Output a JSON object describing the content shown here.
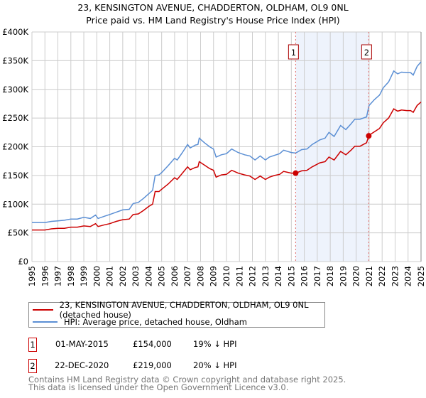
{
  "chart_data": {
    "type": "line",
    "title": "23, KENSINGTON AVENUE, CHADDERTON, OLDHAM, OL9 0NL",
    "subtitle": "Price paid vs. HM Land Registry's House Price Index (HPI)",
    "xlim": [
      1995,
      2025
    ],
    "ylim": [
      0,
      400000
    ],
    "x_ticks": [
      "1995",
      "1996",
      "1997",
      "1998",
      "1999",
      "2000",
      "2001",
      "2002",
      "2003",
      "2004",
      "2005",
      "2006",
      "2007",
      "2008",
      "2009",
      "2010",
      "2011",
      "2012",
      "2013",
      "2014",
      "2015",
      "2016",
      "2017",
      "2018",
      "2019",
      "2020",
      "2021",
      "2022",
      "2023",
      "2024",
      "2025"
    ],
    "y_ticks": [
      {
        "value": 0,
        "label": "£0"
      },
      {
        "value": 50000,
        "label": "£50K"
      },
      {
        "value": 100000,
        "label": "£100K"
      },
      {
        "value": 150000,
        "label": "£150K"
      },
      {
        "value": 200000,
        "label": "£200K"
      },
      {
        "value": 250000,
        "label": "£250K"
      },
      {
        "value": 300000,
        "label": "£300K"
      },
      {
        "value": 350000,
        "label": "£350K"
      },
      {
        "value": 400000,
        "label": "£400K"
      }
    ],
    "grid": true,
    "shaded_range": [
      2015.33,
      2020.97
    ],
    "series": [
      {
        "name": "23, KENSINGTON AVENUE, CHADDERTON, OLDHAM, OL9 0NL (detached house)",
        "color": "#cc0000",
        "points": [
          [
            1995,
            55
          ],
          [
            1995.5,
            55
          ],
          [
            1996,
            55
          ],
          [
            1996.5,
            57
          ],
          [
            1997,
            58
          ],
          [
            1997.5,
            58
          ],
          [
            1998,
            60
          ],
          [
            1998.5,
            60
          ],
          [
            1999,
            62
          ],
          [
            1999.5,
            61
          ],
          [
            1999.9,
            66
          ],
          [
            2000.1,
            61
          ],
          [
            2000.6,
            64
          ],
          [
            2001,
            66
          ],
          [
            2001.5,
            70
          ],
          [
            2002,
            73
          ],
          [
            2002.5,
            74
          ],
          [
            2002.8,
            82
          ],
          [
            2003.2,
            83
          ],
          [
            2003.6,
            89
          ],
          [
            2004,
            96
          ],
          [
            2004.3,
            100
          ],
          [
            2004.5,
            122
          ],
          [
            2004.8,
            122
          ],
          [
            2005,
            126
          ],
          [
            2005.5,
            135
          ],
          [
            2006,
            146
          ],
          [
            2006.2,
            143
          ],
          [
            2006.6,
            154
          ],
          [
            2007,
            165
          ],
          [
            2007.2,
            160
          ],
          [
            2007.6,
            164
          ],
          [
            2007.8,
            165
          ],
          [
            2007.9,
            174
          ],
          [
            2008.3,
            168
          ],
          [
            2008.7,
            162
          ],
          [
            2009,
            159
          ],
          [
            2009.2,
            147
          ],
          [
            2009.6,
            151
          ],
          [
            2010,
            152
          ],
          [
            2010.4,
            159
          ],
          [
            2010.9,
            154
          ],
          [
            2011.4,
            151
          ],
          [
            2011.8,
            149
          ],
          [
            2012.2,
            143
          ],
          [
            2012.6,
            149
          ],
          [
            2013,
            143
          ],
          [
            2013.3,
            147
          ],
          [
            2013.7,
            150
          ],
          [
            2014.1,
            152
          ],
          [
            2014.4,
            157
          ],
          [
            2015,
            154
          ],
          [
            2015.33,
            154
          ],
          [
            2015.8,
            158
          ],
          [
            2016.2,
            159
          ],
          [
            2016.6,
            165
          ],
          [
            2017.2,
            172
          ],
          [
            2017.6,
            174
          ],
          [
            2017.9,
            182
          ],
          [
            2018.3,
            177
          ],
          [
            2018.8,
            192
          ],
          [
            2019.2,
            186
          ],
          [
            2019.6,
            194
          ],
          [
            2019.9,
            201
          ],
          [
            2020.3,
            201
          ],
          [
            2020.8,
            207
          ],
          [
            2020.97,
            219
          ],
          [
            2021.0,
            220
          ],
          [
            2021.4,
            226
          ],
          [
            2021.8,
            232
          ],
          [
            2022.1,
            242
          ],
          [
            2022.5,
            250
          ],
          [
            2022.9,
            266
          ],
          [
            2023.2,
            262
          ],
          [
            2023.5,
            264
          ],
          [
            2023.9,
            263
          ],
          [
            2024.2,
            263
          ],
          [
            2024.4,
            260
          ],
          [
            2024.7,
            272
          ],
          [
            2025.0,
            278
          ]
        ]
      },
      {
        "name": "HPI: Average price, detached house, Oldham",
        "color": "#5b8fd4",
        "points": [
          [
            1995,
            68
          ],
          [
            1995.5,
            68
          ],
          [
            1996,
            68
          ],
          [
            1996.5,
            70
          ],
          [
            1997,
            71
          ],
          [
            1997.5,
            72
          ],
          [
            1998,
            74
          ],
          [
            1998.5,
            74
          ],
          [
            1999,
            77
          ],
          [
            1999.5,
            75
          ],
          [
            1999.9,
            81
          ],
          [
            2000.1,
            75
          ],
          [
            2000.6,
            79
          ],
          [
            2001,
            82
          ],
          [
            2001.5,
            86
          ],
          [
            2002,
            90
          ],
          [
            2002.5,
            91
          ],
          [
            2002.8,
            101
          ],
          [
            2003.2,
            103
          ],
          [
            2003.6,
            110
          ],
          [
            2004,
            118
          ],
          [
            2004.3,
            124
          ],
          [
            2004.5,
            150
          ],
          [
            2004.8,
            151
          ],
          [
            2005,
            155
          ],
          [
            2005.5,
            167
          ],
          [
            2006,
            180
          ],
          [
            2006.2,
            177
          ],
          [
            2006.6,
            190
          ],
          [
            2007,
            204
          ],
          [
            2007.2,
            198
          ],
          [
            2007.6,
            203
          ],
          [
            2007.8,
            204
          ],
          [
            2007.9,
            215
          ],
          [
            2008.3,
            207
          ],
          [
            2008.7,
            200
          ],
          [
            2009,
            196
          ],
          [
            2009.2,
            182
          ],
          [
            2009.6,
            186
          ],
          [
            2010,
            188
          ],
          [
            2010.4,
            196
          ],
          [
            2010.9,
            190
          ],
          [
            2011.4,
            186
          ],
          [
            2011.8,
            184
          ],
          [
            2012.2,
            177
          ],
          [
            2012.6,
            184
          ],
          [
            2013,
            177
          ],
          [
            2013.3,
            182
          ],
          [
            2013.7,
            185
          ],
          [
            2014.1,
            188
          ],
          [
            2014.4,
            194
          ],
          [
            2015,
            190
          ],
          [
            2015.33,
            189
          ],
          [
            2015.8,
            195
          ],
          [
            2016.2,
            196
          ],
          [
            2016.6,
            204
          ],
          [
            2017.2,
            212
          ],
          [
            2017.6,
            215
          ],
          [
            2017.9,
            225
          ],
          [
            2018.3,
            218
          ],
          [
            2018.8,
            237
          ],
          [
            2019.2,
            230
          ],
          [
            2019.6,
            240
          ],
          [
            2019.9,
            248
          ],
          [
            2020.3,
            248
          ],
          [
            2020.8,
            252
          ],
          [
            2020.97,
            270
          ],
          [
            2021.0,
            272
          ],
          [
            2021.4,
            282
          ],
          [
            2021.8,
            290
          ],
          [
            2022.1,
            303
          ],
          [
            2022.5,
            313
          ],
          [
            2022.9,
            332
          ],
          [
            2023.2,
            327
          ],
          [
            2023.5,
            330
          ],
          [
            2023.9,
            329
          ],
          [
            2024.2,
            329
          ],
          [
            2024.4,
            325
          ],
          [
            2024.7,
            340
          ],
          [
            2025.0,
            348
          ]
        ]
      }
    ],
    "y_unit_multiplier": 1000,
    "annotations": [
      {
        "label": "1",
        "x": 2015.33,
        "y": 154
      },
      {
        "label": "2",
        "x": 2020.97,
        "y": 219
      }
    ],
    "legend": "below"
  },
  "legend": {
    "property": "23, KENSINGTON AVENUE, CHADDERTON, OLDHAM, OL9 0NL (detached house)",
    "hpi": "HPI: Average price, detached house, Oldham"
  },
  "sales": [
    {
      "num": "1",
      "date": "01-MAY-2015",
      "price": "£154,000",
      "diff": "19% ↓ HPI"
    },
    {
      "num": "2",
      "date": "22-DEC-2020",
      "price": "£219,000",
      "diff": "20% ↓ HPI"
    }
  ],
  "footer": {
    "line1": "Contains HM Land Registry data © Crown copyright and database right 2025.",
    "line2": "This data is licensed under the Open Government Licence v3.0."
  }
}
